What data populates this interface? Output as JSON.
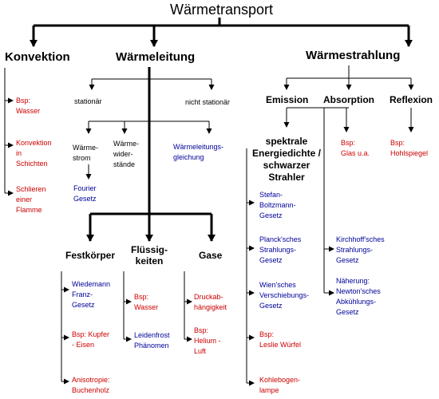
{
  "title": "Wärmetransport",
  "konvektion": {
    "label": "Konvektion",
    "items": [
      "Bsp:\nWasser",
      "Konvektion\nin\nSchichten",
      "Schlieren\neiner\nFlamme"
    ]
  },
  "waermeleitung": {
    "label": "Wärmeleitung",
    "stationaer": "stationär",
    "nicht_stationaer": "nicht stationär",
    "waermestrom": "Wärme-\nstrom",
    "waermewiderstaende": "Wärme-\nwider-\nstände",
    "fourier": "Fourier\nGesetz",
    "gleichung": "Wärmeleitungs-\ngleichung",
    "festkoerper": {
      "label": "Festkörper",
      "items": [
        "Wiedemann\nFranz-\nGesetz",
        "Bsp: Kupfer\n- Eisen",
        "Anisotropie:\nBuchenholz"
      ]
    },
    "fluessigkeiten": {
      "label": "Flüssig-\nkeiten",
      "items": [
        "Bsp:\nWasser",
        "Leidenfrost\nPhänomen"
      ]
    },
    "gase": {
      "label": "Gase",
      "items": [
        "Druckab-\nhängigkeit",
        "Bsp:\nHelium -\nLuft"
      ]
    }
  },
  "waermestrahlung": {
    "label": "Wärmestrahlung",
    "emission": "Emission",
    "absorption": "Absorption",
    "reflexion": "Reflexion",
    "spektral": "spektrale\nEnergiedichte /\nschwarzer\nStrahler",
    "spektral_items": [
      "Stefan-\nBoltzmann-\nGesetz",
      "Planck'sches\nStrahlungs-\nGesetz",
      "Wien'sches\nVerschiebungs-\nGesetz",
      "Bsp:\nLeslie Würfel",
      "Kohlebogen-\nlampe"
    ],
    "absorption_items": [
      "Kirchhoff'sches\nStrahlungs-\nGesetz",
      "Näherung:\nNewton'sches\nAbkühlungs-\nGesetz"
    ],
    "glas": "Bsp:\nGlas u.a.",
    "hohlspiegel": "Bsp:\nHohlspiegel"
  },
  "colors": {
    "example": "#cc0000",
    "law": "#000099",
    "line": "#000000"
  }
}
